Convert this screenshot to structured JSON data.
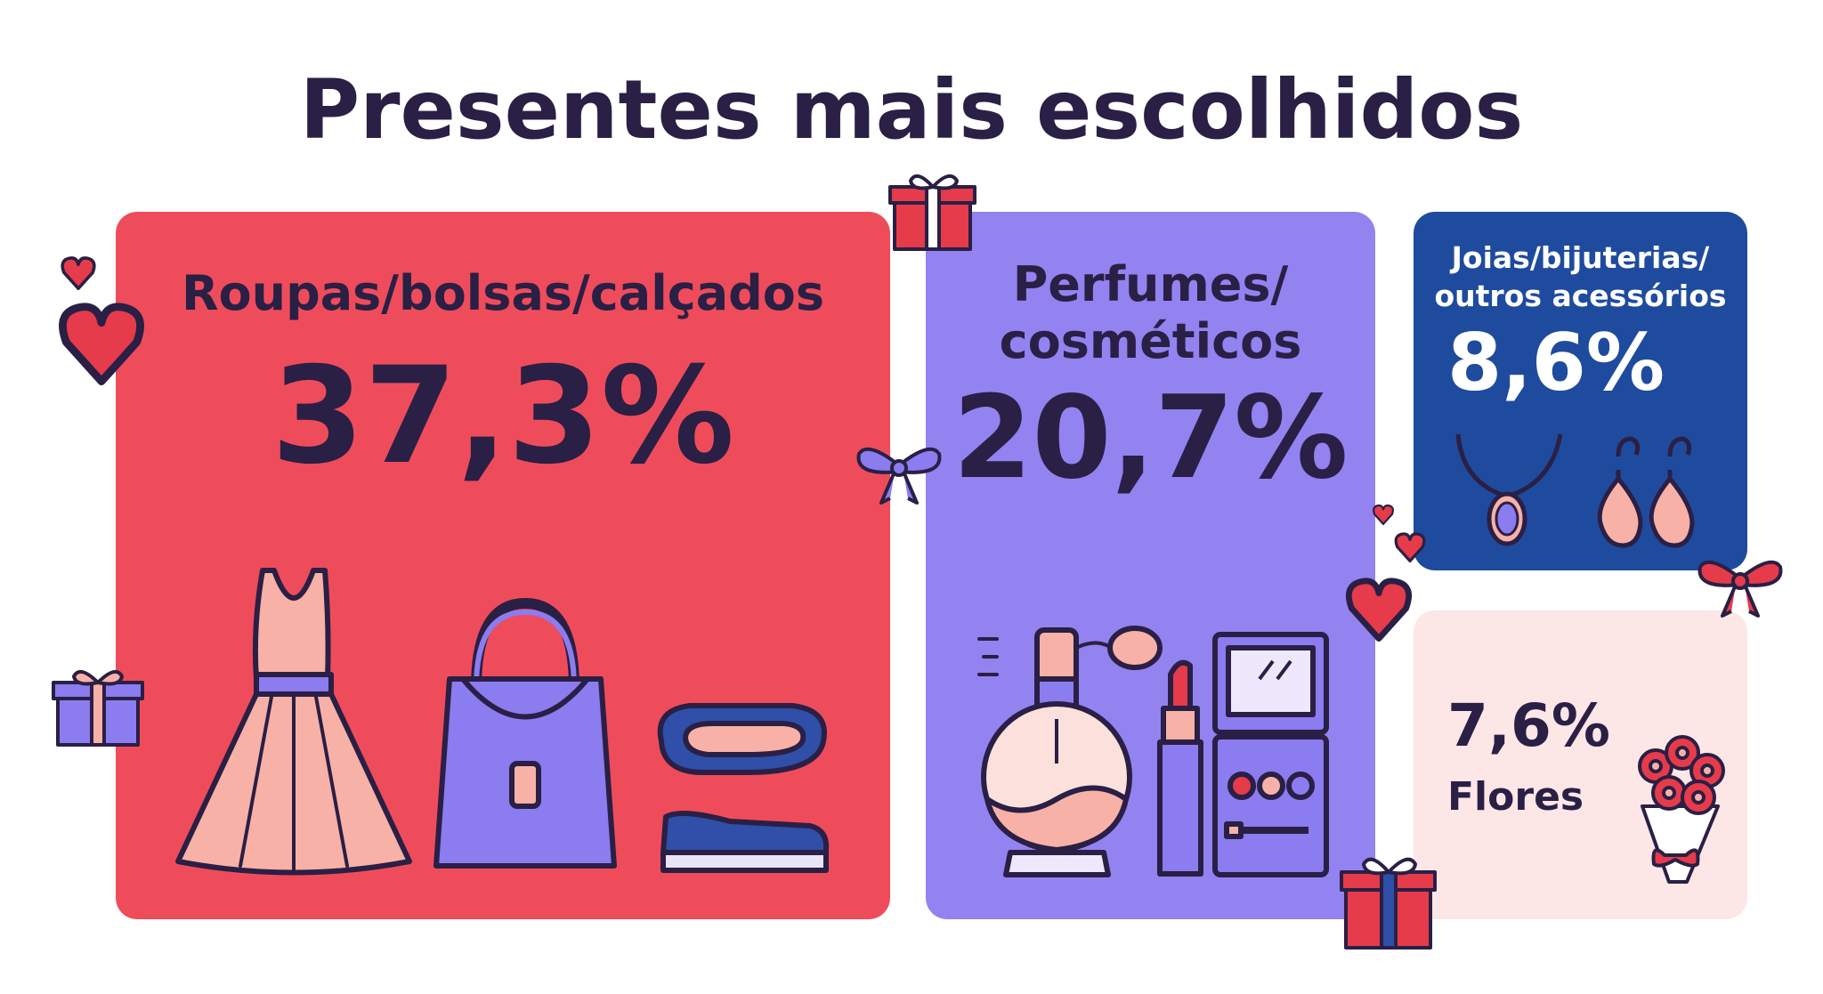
{
  "colors": {
    "title": "#2a1f45",
    "clothing": "#ef4c5b",
    "perfume": "#9283f0",
    "jewelry": "#1f4b9e",
    "flowers": "#fde6e6",
    "outline": "#2a1f45",
    "skin_pink": "#f8b1a6",
    "purple": "#8b7cf0",
    "navy": "#2f4fa8",
    "red": "#e53b4a"
  },
  "chart_data": {
    "type": "bar",
    "title": "Presentes mais escolhidos",
    "categories": [
      "Roupas/bolsas/calçados",
      "Perfumes/\ncosméticos",
      "Joias/bijuterias/\noutros acessórios",
      "Flores"
    ],
    "values": [
      37.3,
      20.7,
      8.6,
      7.6
    ],
    "value_labels": [
      "37,3%",
      "20,7%",
      "8,6%",
      "7,6%"
    ],
    "unit": "%",
    "tile_colors": [
      "#ef4c5b",
      "#9283f0",
      "#1f4b9e",
      "#fde6e6"
    ],
    "icons": [
      [
        "dress-icon",
        "handbag-icon",
        "shoes-icon"
      ],
      [
        "perfume-bottle-icon",
        "lipstick-icon",
        "makeup-palette-icon"
      ],
      [
        "necklace-icon",
        "earrings-icon"
      ],
      [
        "bouquet-icon"
      ]
    ]
  },
  "decorations": [
    "gift-icon",
    "heart-icon",
    "bow-icon"
  ]
}
